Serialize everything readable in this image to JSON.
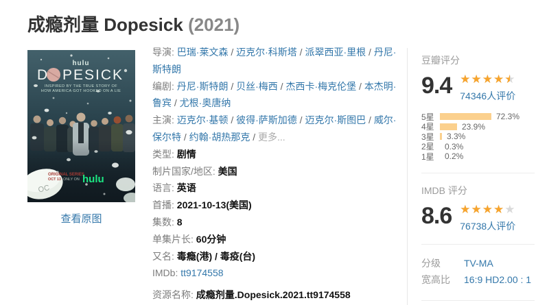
{
  "header": {
    "title": "成瘾剂量 Dopesick",
    "year": "(2021)"
  },
  "poster": {
    "network_top": "hulu",
    "title_letter_d": "D",
    "title_rest": "PESICK",
    "tagline_line1": "INSPIRED BY THE TRUE STORY OF",
    "tagline_line2": "HOW AMERICA GOT HOOKED ON A LIE",
    "promo_line1": "ORIGINAL SERIES",
    "promo_date": "OCT 13",
    "promo_onlyon": "ONLY ON",
    "network_bottom": "hulu",
    "pill_marking": "OC",
    "view_original_label": "查看原图"
  },
  "info": {
    "lines": [
      {
        "parts": [
          {
            "t": "导演: ",
            "c": "label"
          },
          {
            "t": "巴瑞·莱文森",
            "c": "link"
          },
          {
            "t": " / ",
            "c": "sep"
          },
          {
            "t": "迈克尔·科斯塔",
            "c": "link"
          },
          {
            "t": " / ",
            "c": "sep"
          },
          {
            "t": "派翠西亚·里根",
            "c": "link"
          },
          {
            "t": " / ",
            "c": "sep"
          },
          {
            "t": "丹尼·斯特朗",
            "c": "link"
          }
        ]
      },
      {
        "parts": [
          {
            "t": "编剧: ",
            "c": "label"
          },
          {
            "t": "丹尼·斯特朗",
            "c": "link"
          },
          {
            "t": " / ",
            "c": "sep"
          },
          {
            "t": "贝丝·梅西",
            "c": "link"
          },
          {
            "t": " / ",
            "c": "sep"
          },
          {
            "t": "杰西卡·梅克伦堡",
            "c": "link"
          },
          {
            "t": " / ",
            "c": "sep"
          },
          {
            "t": "本杰明·鲁宾",
            "c": "link"
          },
          {
            "t": " / ",
            "c": "sep"
          },
          {
            "t": "尤根·奥唐纳",
            "c": "link"
          }
        ]
      },
      {
        "parts": [
          {
            "t": "主演: ",
            "c": "label"
          },
          {
            "t": "迈克尔·基顿",
            "c": "link"
          },
          {
            "t": " / ",
            "c": "sep"
          },
          {
            "t": "彼得·萨斯加德",
            "c": "link"
          },
          {
            "t": " / ",
            "c": "sep"
          },
          {
            "t": "迈克尔·斯图巴",
            "c": "link"
          },
          {
            "t": " / ",
            "c": "sep"
          },
          {
            "t": "威尔·保尔特",
            "c": "link"
          },
          {
            "t": " / ",
            "c": "sep"
          },
          {
            "t": "约翰·胡热那克",
            "c": "link"
          },
          {
            "t": " / ",
            "c": "sep"
          },
          {
            "t": "更多...",
            "c": "muted"
          }
        ]
      },
      {
        "parts": [
          {
            "t": "类型: ",
            "c": "label"
          },
          {
            "t": "剧情",
            "c": "bold"
          }
        ]
      },
      {
        "parts": [
          {
            "t": "制片国家/地区: ",
            "c": "label"
          },
          {
            "t": "美国",
            "c": "bold"
          }
        ]
      },
      {
        "parts": [
          {
            "t": "语言: ",
            "c": "label"
          },
          {
            "t": "英语",
            "c": "bold"
          }
        ]
      },
      {
        "parts": [
          {
            "t": "首播: ",
            "c": "label"
          },
          {
            "t": "2021-10-13(美国)",
            "c": "bold"
          }
        ]
      },
      {
        "parts": [
          {
            "t": "集数: ",
            "c": "label"
          },
          {
            "t": "8",
            "c": "bold"
          }
        ]
      },
      {
        "parts": [
          {
            "t": "单集片长: ",
            "c": "label"
          },
          {
            "t": "60分钟",
            "c": "bold"
          }
        ]
      },
      {
        "parts": [
          {
            "t": "又名: ",
            "c": "label"
          },
          {
            "t": "毒瘾(港) / 毒疫(台)",
            "c": "bold"
          }
        ]
      },
      {
        "parts": [
          {
            "t": "IMDb: ",
            "c": "label"
          },
          {
            "t": "tt9174558",
            "c": "link"
          }
        ]
      }
    ],
    "resource": {
      "label": "资源名称: ",
      "value": "成瘾剂量.Dopesick.2021.tt9174558"
    }
  },
  "douban": {
    "section_label": "豆瓣评分",
    "score": "9.4",
    "stars_pct": 90,
    "votes": "74346人评价",
    "breakdown": [
      {
        "label": "5星",
        "pct": 72.3,
        "pct_text": "72.3%"
      },
      {
        "label": "4星",
        "pct": 23.9,
        "pct_text": "23.9%"
      },
      {
        "label": "3星",
        "pct": 3.3,
        "pct_text": "3.3%"
      },
      {
        "label": "2星",
        "pct": 0.3,
        "pct_text": "0.3%"
      },
      {
        "label": "1星",
        "pct": 0.2,
        "pct_text": "0.2%"
      }
    ]
  },
  "imdb": {
    "section_label": "IMDB 评分",
    "score": "8.6",
    "stars_pct": 80,
    "votes": "76738人评价"
  },
  "details": [
    {
      "label": "分级",
      "value": "TV-MA"
    },
    {
      "label": "宽高比",
      "value": "16:9 HD2.00 : 1"
    }
  ],
  "icons": {
    "star_glyphs": "★★★★★"
  },
  "colors": {
    "link": "#3377aa",
    "star_orange": "#f7a42d",
    "bar_orange": "#fbd08d",
    "hulu_green": "#1ce783"
  }
}
